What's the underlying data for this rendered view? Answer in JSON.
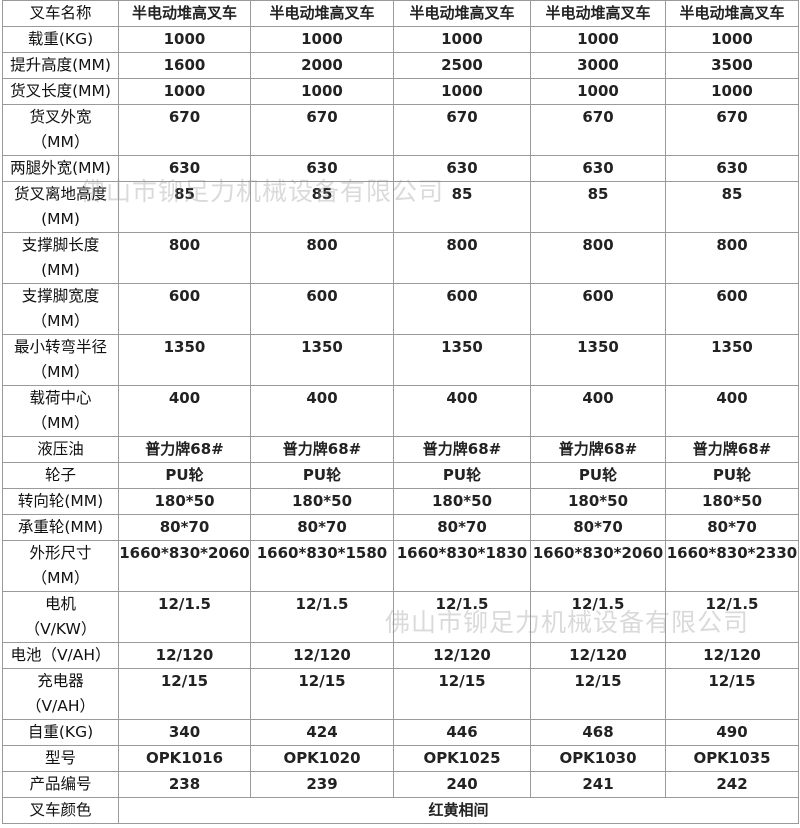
{
  "header": {
    "label": "叉车名称",
    "values": [
      "半电动堆高叉车",
      "半电动堆高叉车",
      "半电动堆高叉车",
      "半电动堆高叉车",
      "半电动堆高叉车"
    ]
  },
  "rows": [
    {
      "label": "载重(KG)",
      "values": [
        "1000",
        "1000",
        "1000",
        "1000",
        "1000"
      ]
    },
    {
      "label": "提升高度(MM)",
      "values": [
        "1600",
        "2000",
        "2500",
        "3000",
        "3500"
      ]
    },
    {
      "label": "货叉长度(MM)",
      "values": [
        "1000",
        "1000",
        "1000",
        "1000",
        "1000"
      ]
    },
    {
      "label": "货叉外宽\n（MM）",
      "values": [
        "670",
        "670",
        "670",
        "670",
        "670"
      ]
    },
    {
      "label": "两腿外宽(MM)",
      "values": [
        "630",
        "630",
        "630",
        "630",
        "630"
      ]
    },
    {
      "label": "货叉离地高度\n(MM)",
      "values": [
        "85",
        "85",
        "85",
        "85",
        "85"
      ]
    },
    {
      "label": "支撑脚长度\n(MM)",
      "values": [
        "800",
        "800",
        "800",
        "800",
        "800"
      ]
    },
    {
      "label": "支撑脚宽度\n（MM）",
      "values": [
        "600",
        "600",
        "600",
        "600",
        "600"
      ]
    },
    {
      "label": "最小转弯半径\n（MM）",
      "values": [
        "1350",
        "1350",
        "1350",
        "1350",
        "1350"
      ]
    },
    {
      "label": "载荷中心\n（MM）",
      "values": [
        "400",
        "400",
        "400",
        "400",
        "400"
      ]
    },
    {
      "label": "液压油",
      "values": [
        "普力牌68#",
        "普力牌68#",
        "普力牌68#",
        "普力牌68#",
        "普力牌68#"
      ]
    },
    {
      "label": "轮子",
      "values": [
        "PU轮",
        "PU轮",
        "PU轮",
        "PU轮",
        "PU轮"
      ]
    },
    {
      "label": "转向轮(MM)",
      "values": [
        "180*50",
        "180*50",
        "180*50",
        "180*50",
        "180*50"
      ]
    },
    {
      "label": "承重轮(MM)",
      "values": [
        "80*70",
        "80*70",
        "80*70",
        "80*70",
        "80*70"
      ]
    },
    {
      "label": "外形尺寸\n（MM）",
      "values": [
        "1660*830*2060",
        "1660*830*1580",
        "1660*830*1830",
        "1660*830*2060",
        "1660*830*2330"
      ]
    },
    {
      "label": "电机\n（V/KW）",
      "values": [
        "12/1.5",
        "12/1.5",
        "12/1.5",
        "12/1.5",
        "12/1.5"
      ]
    },
    {
      "label": "电池（V/AH）",
      "values": [
        "12/120",
        "12/120",
        "12/120",
        "12/120",
        "12/120"
      ]
    },
    {
      "label": "充电器\n（V/AH）",
      "values": [
        "12/15",
        "12/15",
        "12/15",
        "12/15",
        "12/15"
      ]
    },
    {
      "label": "自重(KG)",
      "values": [
        "340",
        "424",
        "446",
        "468",
        "490"
      ]
    },
    {
      "label": "型号",
      "values": [
        "OPK1016",
        "OPK1020",
        "OPK1025",
        "OPK1030",
        "OPK1035"
      ]
    },
    {
      "label": "产品编号",
      "values": [
        "238",
        "239",
        "240",
        "241",
        "242"
      ]
    }
  ],
  "footer": {
    "label": "叉车颜色",
    "value": "红黄相间"
  },
  "watermark": "佛山市铆足力机械设备有限公司"
}
